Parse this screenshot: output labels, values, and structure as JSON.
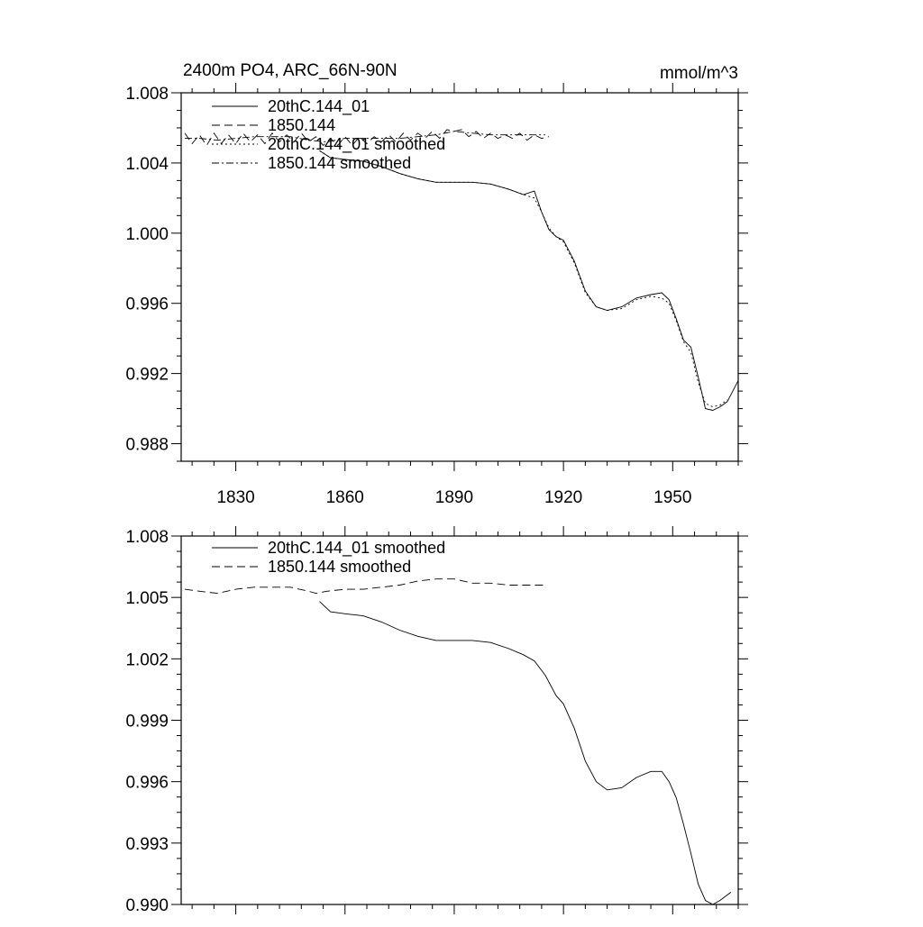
{
  "chart_data": [
    {
      "type": "line",
      "title_left": "2400m PO4, ARC_66N-90N",
      "title_right": "mmol/m^3",
      "xlabel": "",
      "ylabel": "",
      "xlim": [
        1815,
        1968
      ],
      "ylim": [
        0.987,
        1.008
      ],
      "xticks": [
        1830,
        1860,
        1890,
        1920,
        1950
      ],
      "xtick_labels": [
        "1830",
        "1860",
        "1890",
        "1920",
        "1950"
      ],
      "yticks": [
        1.008,
        1.004,
        1.0,
        0.996,
        0.992,
        0.988
      ],
      "ytick_labels": [
        "1.008",
        "1.004",
        "1.000",
        "0.996",
        "0.992",
        "0.988"
      ],
      "legend_position": "top-left",
      "series": [
        {
          "name": "20thC.144_01",
          "dash": "",
          "x": [
            1853,
            1856,
            1860,
            1865,
            1870,
            1875,
            1880,
            1885,
            1890,
            1895,
            1900,
            1905,
            1909,
            1912,
            1914,
            1916,
            1918,
            1920,
            1923,
            1926,
            1929,
            1932,
            1936,
            1940,
            1944,
            1947,
            1949,
            1951,
            1953,
            1955,
            1957,
            1959,
            1961,
            1963,
            1965,
            1968
          ],
          "values": [
            1.0047,
            1.0043,
            1.0042,
            1.0041,
            1.0038,
            1.0034,
            1.0031,
            1.0029,
            1.0029,
            1.0029,
            1.0028,
            1.0025,
            1.0022,
            1.0024,
            1.0012,
            1.0002,
            0.9998,
            0.9996,
            0.9984,
            0.9967,
            0.9958,
            0.9956,
            0.9958,
            0.9963,
            0.9965,
            0.9966,
            0.9962,
            0.9951,
            0.9939,
            0.9935,
            0.9918,
            0.99,
            0.9899,
            0.9901,
            0.9904,
            0.9916
          ]
        },
        {
          "name": "1850.144",
          "dash": "9 5",
          "x": [
            1816,
            1818,
            1820,
            1822,
            1824,
            1826,
            1828,
            1830,
            1832,
            1834,
            1836,
            1838,
            1840,
            1842,
            1844,
            1846,
            1848,
            1850,
            1852,
            1854,
            1856,
            1858,
            1860,
            1862,
            1864,
            1866,
            1868,
            1870,
            1872,
            1874,
            1876,
            1878,
            1880,
            1882,
            1884,
            1886,
            1888,
            1890,
            1892,
            1894,
            1896,
            1898,
            1900,
            1902,
            1904,
            1906,
            1908,
            1910,
            1912,
            1914,
            1916
          ],
          "values": [
            1.0057,
            1.0051,
            1.0056,
            1.005,
            1.0057,
            1.0051,
            1.0056,
            1.0051,
            1.0057,
            1.0052,
            1.0056,
            1.0051,
            1.0057,
            1.0052,
            1.0056,
            1.0052,
            1.0057,
            1.0052,
            1.0055,
            1.005,
            1.0054,
            1.005,
            1.0055,
            1.005,
            1.0055,
            1.0051,
            1.0055,
            1.0052,
            1.0056,
            1.0052,
            1.0057,
            1.0053,
            1.0057,
            1.0054,
            1.0058,
            1.0054,
            1.0059,
            1.0058,
            1.0059,
            1.0055,
            1.0058,
            1.0054,
            1.0057,
            1.0054,
            1.0056,
            1.0054,
            1.0057,
            1.0053,
            1.0056,
            1.0054,
            1.0055
          ]
        },
        {
          "name": "20thC.144_01 smoothed",
          "dash": "2 3",
          "x": [
            1853,
            1856,
            1860,
            1865,
            1870,
            1875,
            1880,
            1885,
            1890,
            1895,
            1900,
            1905,
            1909,
            1912,
            1914,
            1916,
            1918,
            1920,
            1923,
            1926,
            1929,
            1932,
            1936,
            1940,
            1944,
            1947,
            1949,
            1951,
            1953,
            1955,
            1957,
            1959,
            1961,
            1963,
            1965
          ],
          "values": [
            1.0047,
            1.0043,
            1.0042,
            1.0041,
            1.0038,
            1.0034,
            1.0031,
            1.0029,
            1.0029,
            1.0029,
            1.0028,
            1.0025,
            1.0022,
            1.002,
            1.0012,
            1.0003,
            0.9998,
            0.9995,
            0.9983,
            0.9966,
            0.9958,
            0.9956,
            0.9957,
            0.9962,
            0.9964,
            0.9963,
            0.996,
            0.995,
            0.9938,
            0.9932,
            0.9915,
            0.9903,
            0.9901,
            0.9902,
            0.9905
          ]
        },
        {
          "name": "1850.144 smoothed",
          "dash": "8 3 2 3",
          "x": [
            1816,
            1820,
            1825,
            1830,
            1835,
            1840,
            1845,
            1850,
            1855,
            1860,
            1865,
            1870,
            1875,
            1880,
            1885,
            1890,
            1895,
            1900,
            1905,
            1910,
            1915
          ],
          "values": [
            1.0054,
            1.0054,
            1.0053,
            1.0054,
            1.0055,
            1.0055,
            1.0055,
            1.0053,
            1.0052,
            1.0054,
            1.0054,
            1.0054,
            1.0054,
            1.0055,
            1.0056,
            1.0058,
            1.0057,
            1.0056,
            1.0056,
            1.0056,
            1.0056
          ]
        }
      ]
    },
    {
      "type": "line",
      "title_left": "",
      "title_right": "",
      "xlabel": "",
      "ylabel": "",
      "xlim": [
        1815,
        1968
      ],
      "ylim": [
        0.99,
        1.008
      ],
      "xticks": [
        1830,
        1860,
        1890,
        1920,
        1950
      ],
      "xtick_labels": [],
      "yticks": [
        1.008,
        1.005,
        1.002,
        0.999,
        0.996,
        0.993,
        0.99
      ],
      "ytick_labels": [
        "1.008",
        "1.005",
        "1.002",
        "0.999",
        "0.996",
        "0.993",
        "0.990"
      ],
      "legend_position": "top-left",
      "series": [
        {
          "name": "20thC.144_01 smoothed",
          "dash": "",
          "x": [
            1853,
            1856,
            1860,
            1865,
            1870,
            1875,
            1880,
            1885,
            1890,
            1895,
            1900,
            1905,
            1909,
            1912,
            1915,
            1918,
            1920,
            1923,
            1926,
            1929,
            1932,
            1936,
            1940,
            1944,
            1947,
            1949,
            1951,
            1953,
            1955,
            1957,
            1959,
            1961,
            1963,
            1966
          ],
          "values": [
            1.0048,
            1.0043,
            1.0042,
            1.0041,
            1.0038,
            1.0034,
            1.0031,
            1.0029,
            1.0029,
            1.0029,
            1.0028,
            1.0025,
            1.0022,
            1.0019,
            1.0012,
            1.0002,
            0.9998,
            0.9986,
            0.997,
            0.996,
            0.9956,
            0.9957,
            0.9962,
            0.9965,
            0.9965,
            0.996,
            0.9952,
            0.9939,
            0.9925,
            0.991,
            0.9902,
            0.99,
            0.9902,
            0.9906
          ]
        },
        {
          "name": "1850.144 smoothed",
          "dash": "9 5",
          "x": [
            1816,
            1820,
            1825,
            1830,
            1835,
            1840,
            1845,
            1850,
            1852,
            1855,
            1860,
            1865,
            1870,
            1875,
            1880,
            1885,
            1890,
            1895,
            1900,
            1905,
            1910,
            1915
          ],
          "values": [
            1.0054,
            1.0053,
            1.0052,
            1.0054,
            1.0055,
            1.0055,
            1.0055,
            1.0053,
            1.0052,
            1.0053,
            1.0054,
            1.0054,
            1.0055,
            1.0056,
            1.0058,
            1.0059,
            1.0059,
            1.0057,
            1.0057,
            1.0056,
            1.0056,
            1.0056
          ]
        }
      ]
    }
  ]
}
